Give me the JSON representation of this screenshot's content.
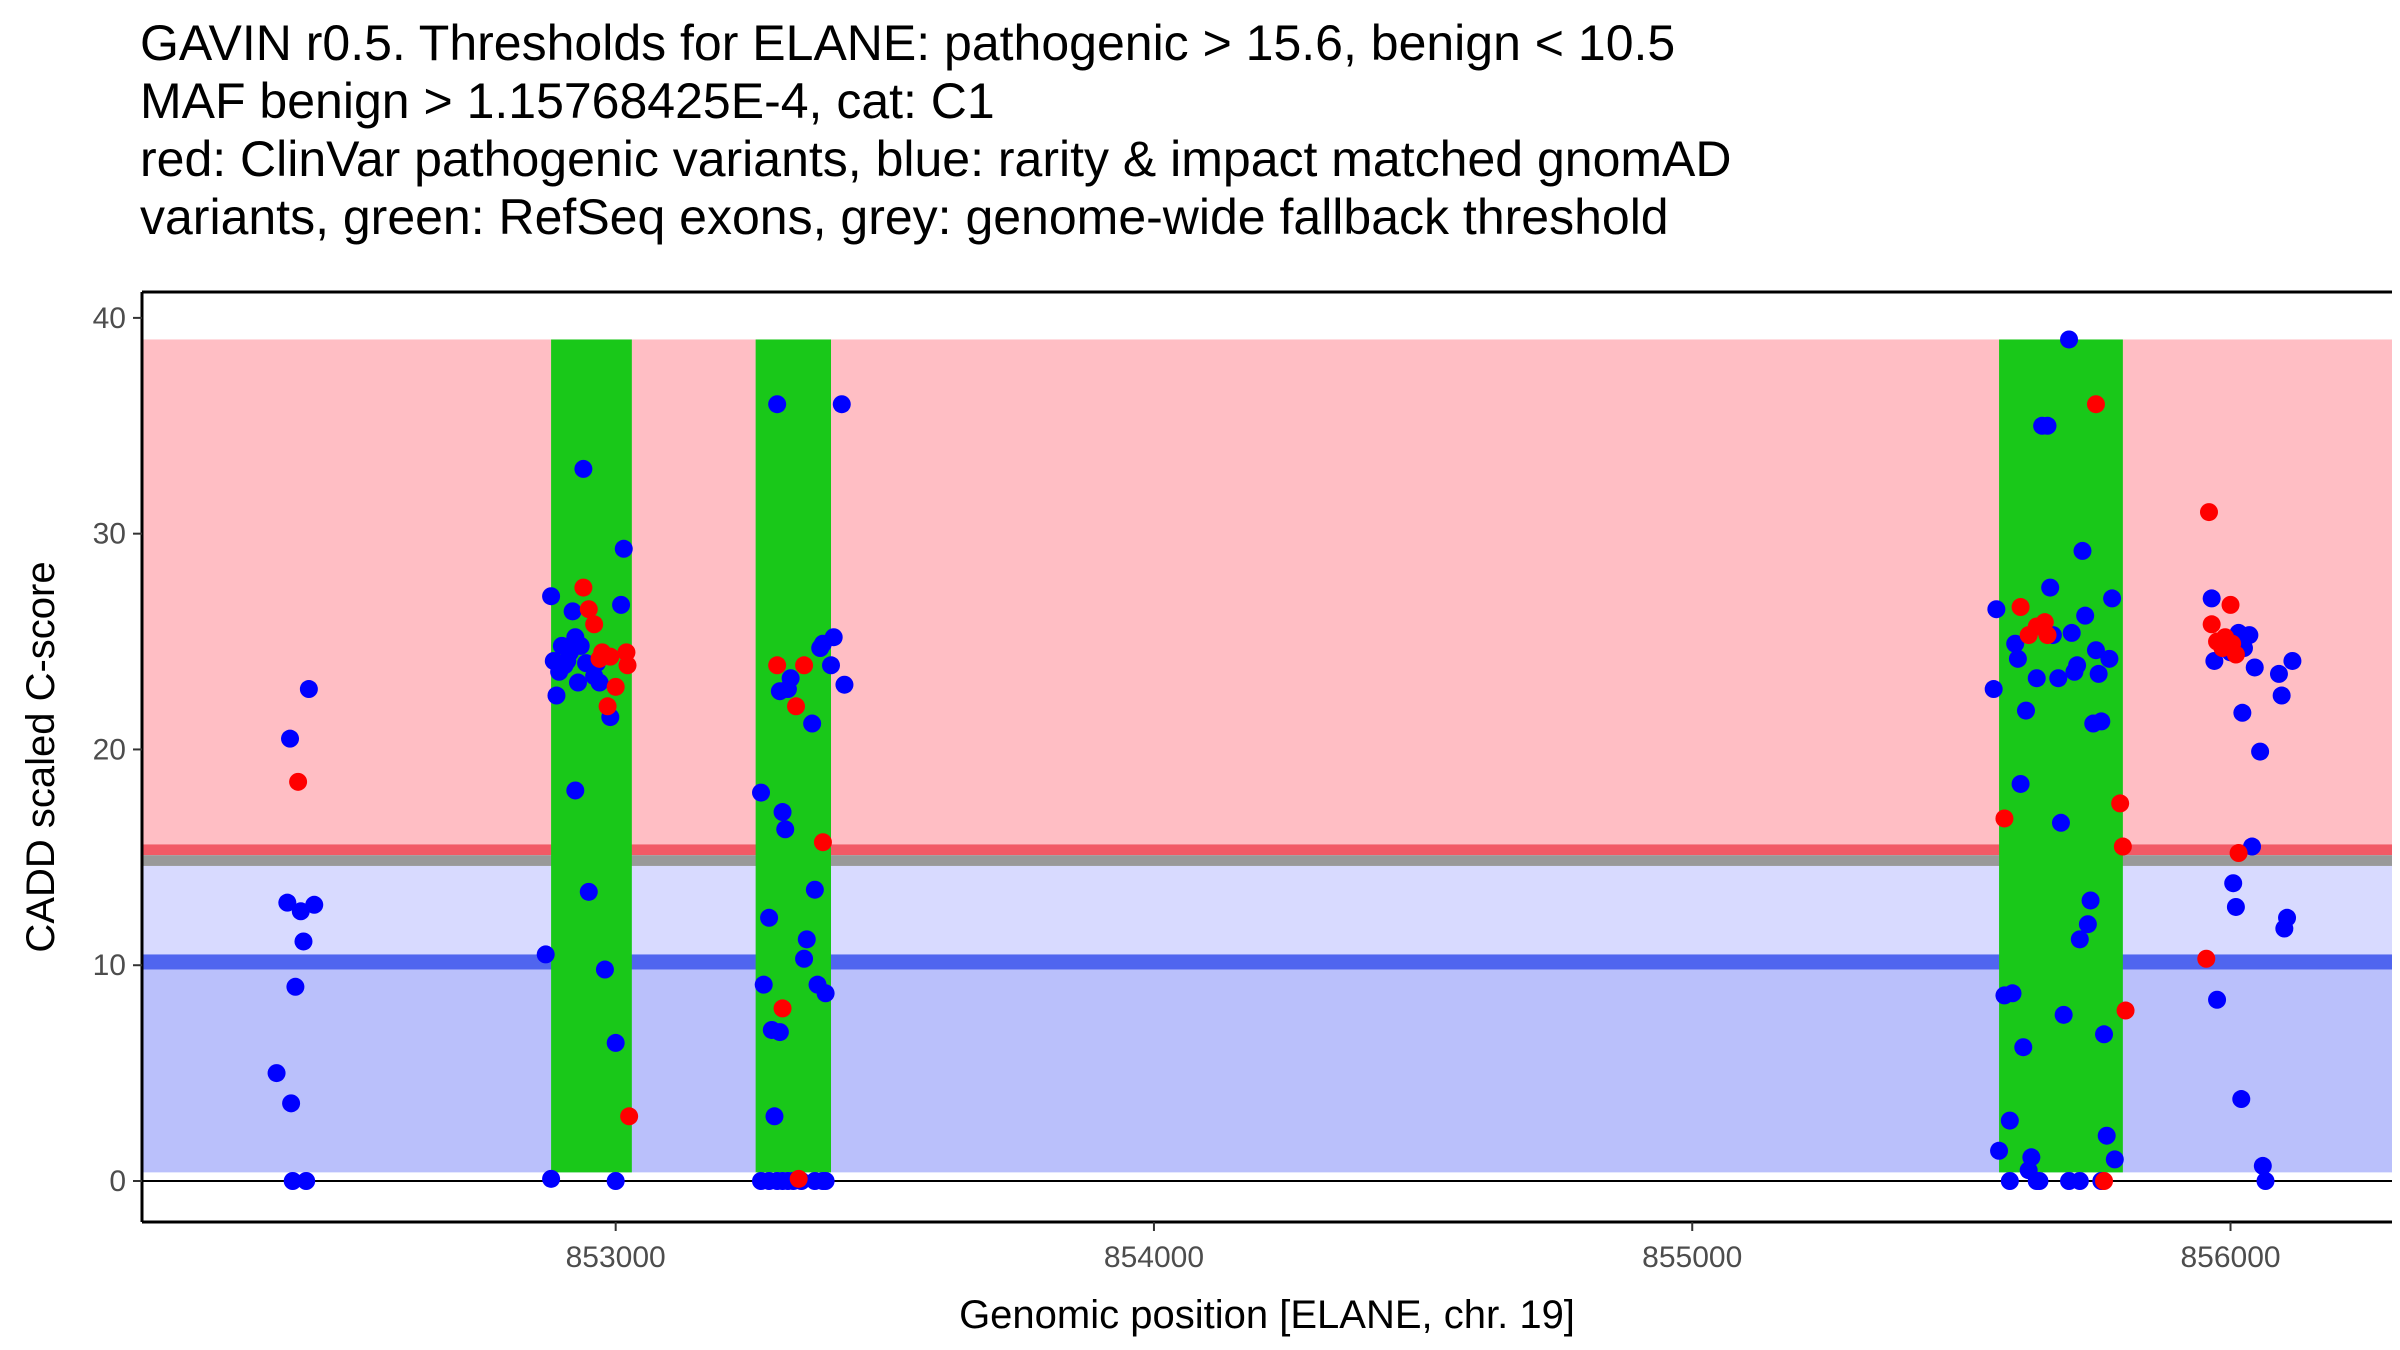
{
  "chart_data": {
    "type": "scatter",
    "title_lines": [
      "GAVIN r0.5. Thresholds for ELANE: pathogenic > 15.6, benign < 10.5",
      "MAF benign > 1.15768425E-4, cat: C1",
      "red: ClinVar pathogenic variants, blue: rarity & impact matched gnomAD",
      "variants, green: RefSeq exons, grey: genome-wide fallback threshold"
    ],
    "xlabel": "Genomic position [ELANE, chr. 19]",
    "ylabel": "CADD scaled C-score",
    "xlim": [
      852120,
      856300
    ],
    "ylim": [
      -1.9,
      41.2
    ],
    "x_ticks": [
      853000,
      854000,
      855000,
      856000
    ],
    "y_ticks": [
      0,
      10,
      20,
      30,
      40
    ],
    "grid": false,
    "colors": {
      "pathogenic_region": "#ffbec4",
      "pathogenic_threshold": "#f25a66",
      "fallback_threshold": "#999999",
      "benign_light_region": "#d8daff",
      "benign_region": "#bac0fb",
      "benign_threshold": "#5065ef",
      "exon": "#19c819",
      "clinvar_point": "#ff0000",
      "gnomad_point": "#0000ff",
      "zero_line": "#000000"
    },
    "thresholds": {
      "pathogenic": 15.6,
      "benign": 10.5,
      "fallback_top": 15.1,
      "fallback_bottom": 14.6,
      "region_top": 39,
      "region_bottom": 0.4
    },
    "exons": [
      {
        "start": 852880,
        "end": 853030
      },
      {
        "start": 853260,
        "end": 853400
      },
      {
        "start": 855570,
        "end": 855800
      }
    ],
    "series": [
      {
        "name": "ClinVar pathogenic variants",
        "points": [
          [
            852410,
            18.5
          ],
          [
            852940,
            27.5
          ],
          [
            852950,
            26.5
          ],
          [
            852960,
            25.8
          ],
          [
            852975,
            24.5
          ],
          [
            852990,
            24.3
          ],
          [
            852970,
            24.2
          ],
          [
            852985,
            22.0
          ],
          [
            853000,
            22.9
          ],
          [
            853020,
            24.5
          ],
          [
            853022,
            23.9
          ],
          [
            853025,
            3.0
          ],
          [
            853300,
            23.9
          ],
          [
            853310,
            8.0
          ],
          [
            853335,
            22.0
          ],
          [
            853350,
            23.9
          ],
          [
            853385,
            15.7
          ],
          [
            853340,
            0.1
          ],
          [
            855580,
            16.8
          ],
          [
            855610,
            26.6
          ],
          [
            855625,
            25.3
          ],
          [
            855640,
            25.7
          ],
          [
            855655,
            25.9
          ],
          [
            855660,
            25.3
          ],
          [
            855750,
            36.0
          ],
          [
            855795,
            17.5
          ],
          [
            855800,
            15.5
          ],
          [
            855805,
            7.9
          ],
          [
            855765,
            0.0
          ],
          [
            855960,
            31.0
          ],
          [
            855965,
            25.8
          ],
          [
            855975,
            25.0
          ],
          [
            855985,
            24.7
          ],
          [
            855990,
            25.2
          ],
          [
            856000,
            26.7
          ],
          [
            856003,
            24.9
          ],
          [
            856010,
            24.4
          ],
          [
            856015,
            15.2
          ],
          [
            855955,
            10.3
          ]
        ]
      },
      {
        "name": "gnomAD matched variants",
        "points": [
          [
            852370,
            5.0
          ],
          [
            852390,
            12.9
          ],
          [
            852395,
            20.5
          ],
          [
            852397,
            3.6
          ],
          [
            852400,
            0.0
          ],
          [
            852405,
            9.0
          ],
          [
            852415,
            12.5
          ],
          [
            852420,
            11.1
          ],
          [
            852425,
            0.0
          ],
          [
            852430,
            22.8
          ],
          [
            852440,
            12.8
          ],
          [
            852870,
            10.5
          ],
          [
            852880,
            27.1
          ],
          [
            852885,
            24.1
          ],
          [
            852890,
            22.5
          ],
          [
            852895,
            23.6
          ],
          [
            852900,
            24.8
          ],
          [
            852905,
            23.9
          ],
          [
            852910,
            24.1
          ],
          [
            852915,
            24.5
          ],
          [
            852920,
            26.4
          ],
          [
            852925,
            25.2
          ],
          [
            852930,
            23.1
          ],
          [
            852935,
            24.8
          ],
          [
            852940,
            33.0
          ],
          [
            852945,
            24.0
          ],
          [
            852950,
            13.4
          ],
          [
            852960,
            23.4
          ],
          [
            852965,
            24.0
          ],
          [
            852970,
            23.1
          ],
          [
            852980,
            9.8
          ],
          [
            852990,
            21.5
          ],
          [
            853000,
            6.4
          ],
          [
            853010,
            26.7
          ],
          [
            853015,
            29.3
          ],
          [
            852880,
            0.1
          ],
          [
            853000,
            0.0
          ],
          [
            852925,
            18.1
          ],
          [
            853270,
            18.0
          ],
          [
            853275,
            9.1
          ],
          [
            853285,
            12.2
          ],
          [
            853290,
            7.0
          ],
          [
            853295,
            3.0
          ],
          [
            853300,
            36.0
          ],
          [
            853305,
            22.7
          ],
          [
            853310,
            17.1
          ],
          [
            853315,
            16.3
          ],
          [
            853320,
            22.8
          ],
          [
            853325,
            23.3
          ],
          [
            853305,
            6.9
          ],
          [
            853350,
            10.3
          ],
          [
            853355,
            11.2
          ],
          [
            853365,
            21.2
          ],
          [
            853370,
            13.5
          ],
          [
            853375,
            9.1
          ],
          [
            853380,
            24.7
          ],
          [
            853385,
            24.9
          ],
          [
            853390,
            8.7
          ],
          [
            853400,
            23.9
          ],
          [
            853405,
            25.2
          ],
          [
            853420,
            36.0
          ],
          [
            853425,
            23.0
          ],
          [
            853270,
            0.0
          ],
          [
            853285,
            0.0
          ],
          [
            853300,
            0.0
          ],
          [
            853310,
            0.0
          ],
          [
            853320,
            0.0
          ],
          [
            853330,
            0.0
          ],
          [
            853345,
            0.0
          ],
          [
            853370,
            0.0
          ],
          [
            853385,
            0.0
          ],
          [
            853390,
            0.0
          ],
          [
            855560,
            22.8
          ],
          [
            855565,
            26.5
          ],
          [
            855570,
            1.4
          ],
          [
            855580,
            8.6
          ],
          [
            855590,
            2.8
          ],
          [
            855595,
            8.7
          ],
          [
            855600,
            24.9
          ],
          [
            855605,
            24.2
          ],
          [
            855610,
            18.4
          ],
          [
            855615,
            6.2
          ],
          [
            855620,
            21.8
          ],
          [
            855625,
            0.5
          ],
          [
            855630,
            1.1
          ],
          [
            855640,
            23.3
          ],
          [
            855645,
            0.0
          ],
          [
            855650,
            35.0
          ],
          [
            855660,
            35.0
          ],
          [
            855665,
            27.5
          ],
          [
            855670,
            25.3
          ],
          [
            855680,
            23.3
          ],
          [
            855685,
            16.6
          ],
          [
            855690,
            7.7
          ],
          [
            855700,
            39.0
          ],
          [
            855705,
            25.4
          ],
          [
            855710,
            23.6
          ],
          [
            855715,
            23.9
          ],
          [
            855720,
            11.2
          ],
          [
            855725,
            29.2
          ],
          [
            855730,
            26.2
          ],
          [
            855735,
            11.9
          ],
          [
            855740,
            13.0
          ],
          [
            855745,
            21.2
          ],
          [
            855750,
            24.6
          ],
          [
            855755,
            23.5
          ],
          [
            855760,
            21.3
          ],
          [
            855765,
            6.8
          ],
          [
            855770,
            2.1
          ],
          [
            855775,
            24.2
          ],
          [
            855780,
            27.0
          ],
          [
            855785,
            1.0
          ],
          [
            855590,
            0.0
          ],
          [
            855640,
            0.0
          ],
          [
            855700,
            0.0
          ],
          [
            855720,
            0.0
          ],
          [
            855760,
            0.0
          ],
          [
            855965,
            27.0
          ],
          [
            855970,
            24.1
          ],
          [
            855975,
            8.4
          ],
          [
            856000,
            24.5
          ],
          [
            856005,
            13.8
          ],
          [
            856010,
            12.7
          ],
          [
            856015,
            25.4
          ],
          [
            856020,
            3.8
          ],
          [
            856022,
            21.7
          ],
          [
            856025,
            24.7
          ],
          [
            856035,
            25.3
          ],
          [
            856040,
            15.5
          ],
          [
            856045,
            23.8
          ],
          [
            856055,
            19.9
          ],
          [
            856060,
            0.7
          ],
          [
            856065,
            0.0
          ],
          [
            856090,
            23.5
          ],
          [
            856095,
            22.5
          ],
          [
            856100,
            11.7
          ],
          [
            856105,
            12.2
          ],
          [
            856115,
            24.1
          ]
        ]
      }
    ]
  }
}
